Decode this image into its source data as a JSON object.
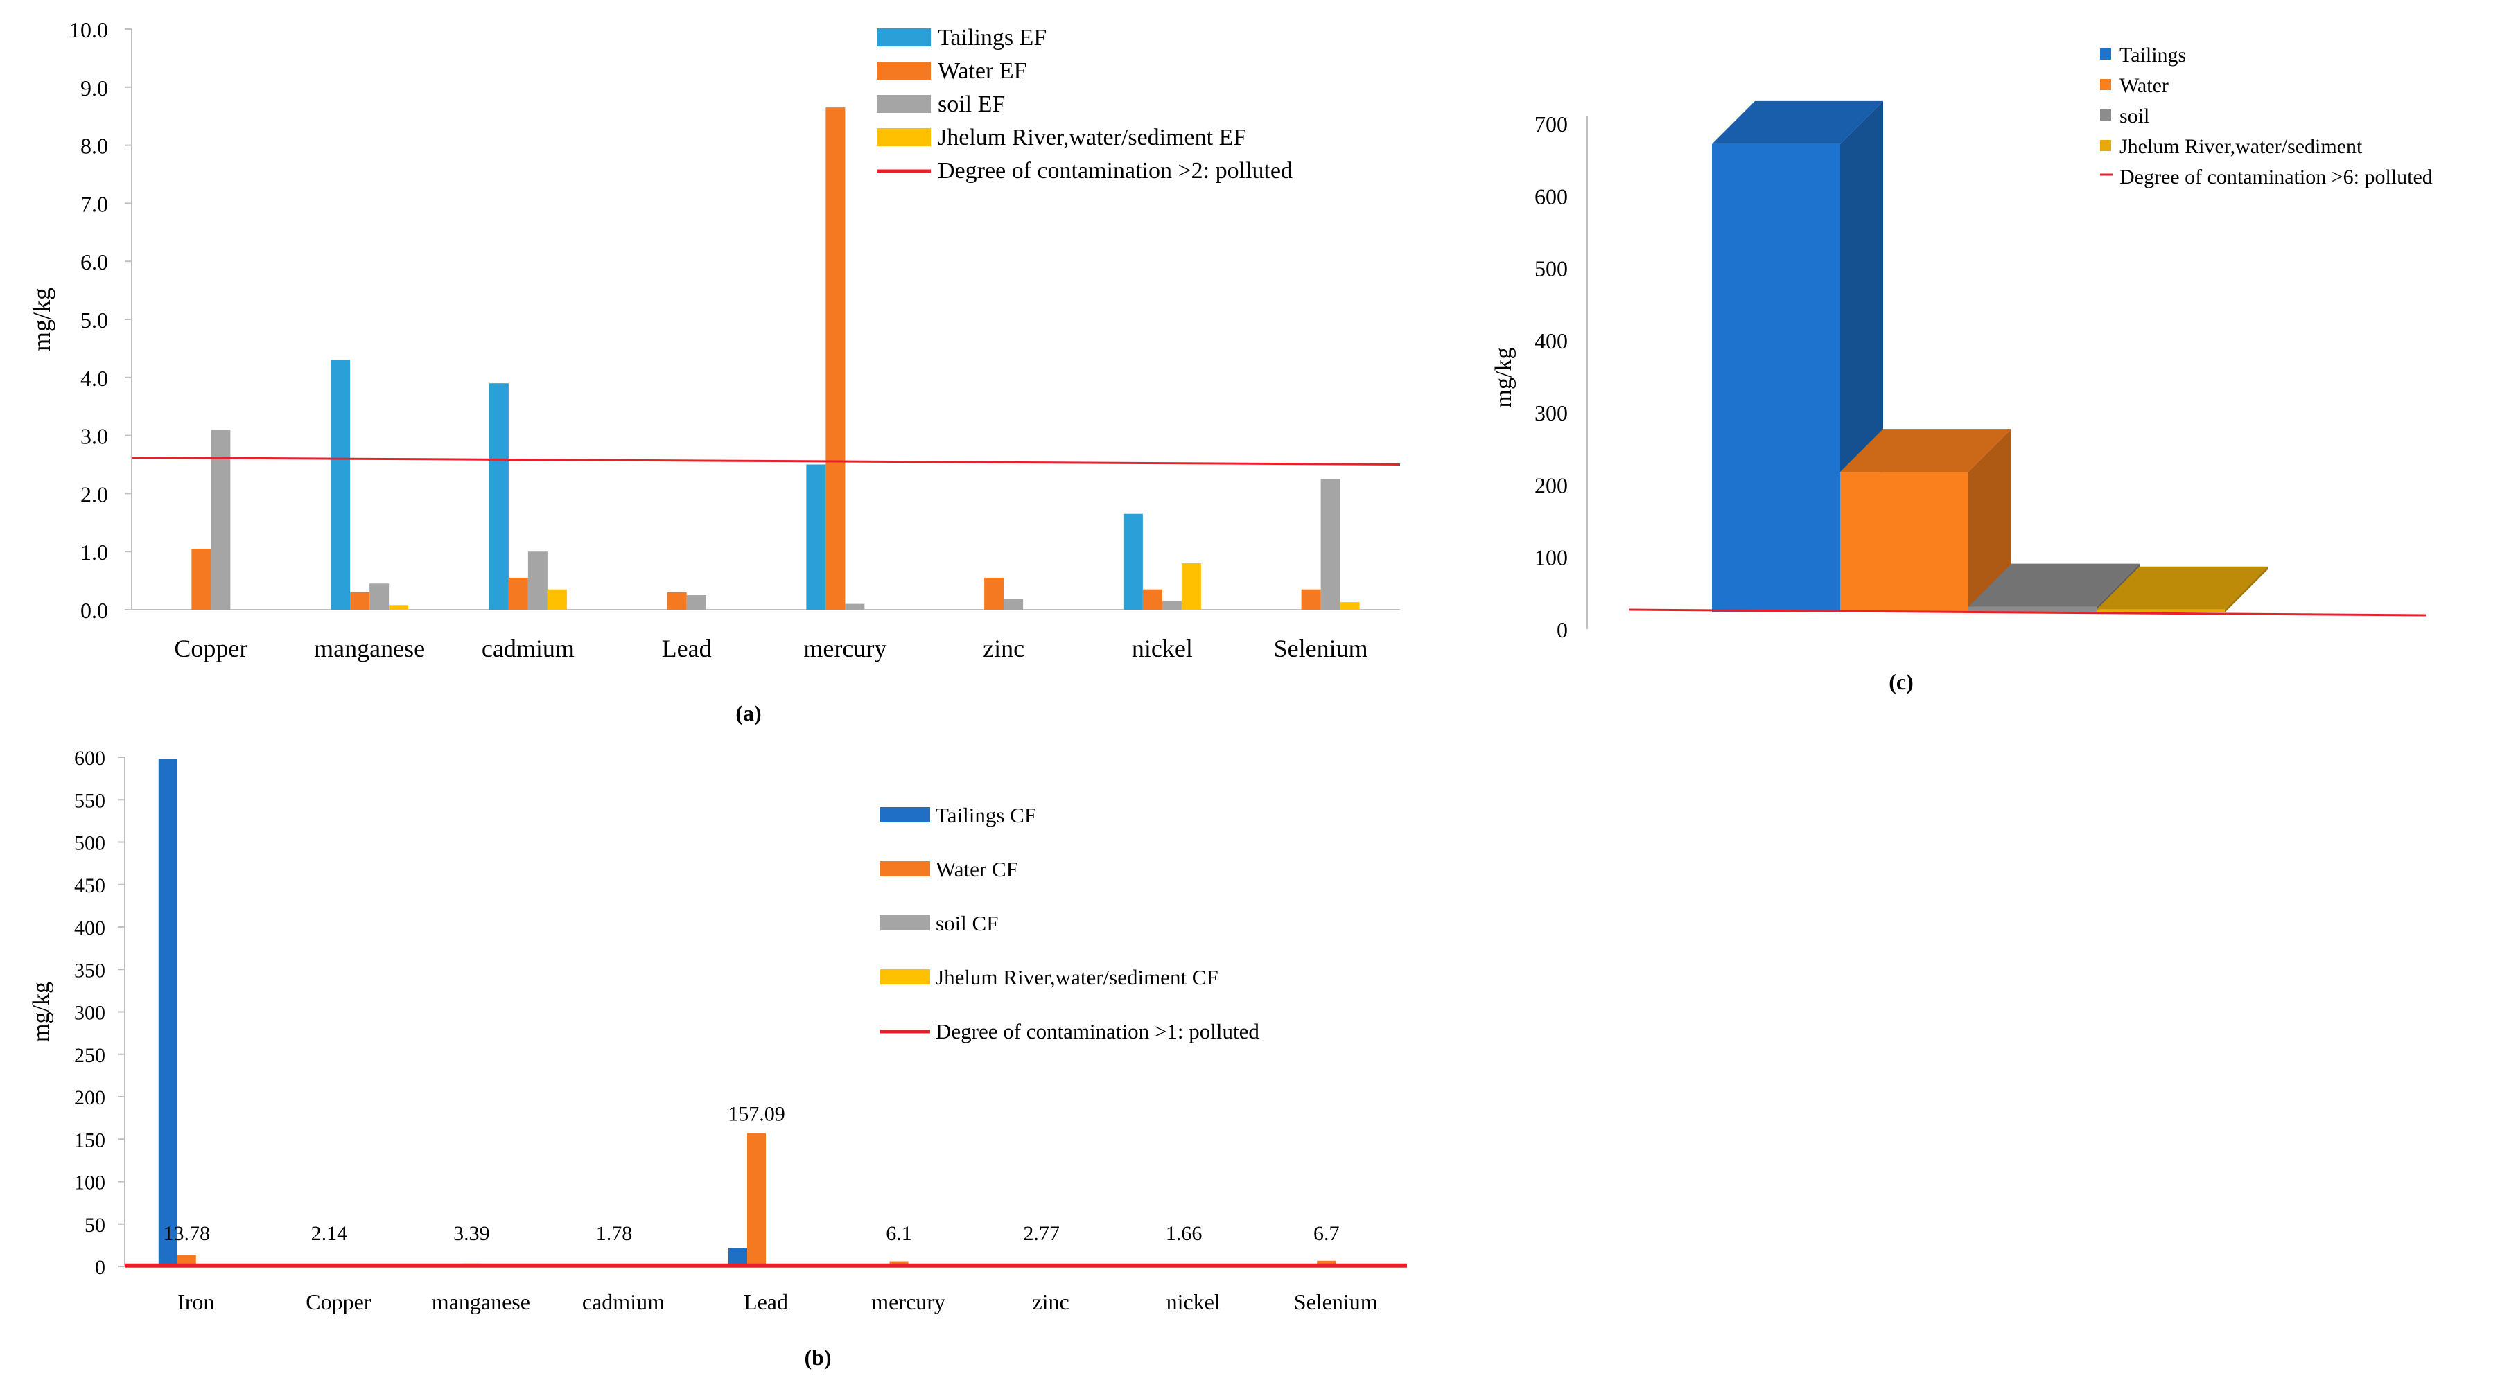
{
  "colors": {
    "a_tailings": "#2B9FD8",
    "a_water": "#F47920",
    "a_soil": "#A5A5A5",
    "a_river": "#FFC000",
    "b_tailings": "#1F6FC6",
    "b_water": "#F47920",
    "b_soil": "#A5A5A5",
    "b_river": "#FFC000",
    "c_tailings": "#1E73CF",
    "c_water": "#F9801D",
    "c_soil": "#8C8C8C",
    "c_river": "#E8A90A",
    "threshold": "#E8202A",
    "axis": "#BFBFBF"
  },
  "chart_data": [
    {
      "id": "a",
      "panel_label": "(a)",
      "type": "bar",
      "ylabel": "mg/kg",
      "ylim": [
        0,
        10
      ],
      "yticks": [
        "0.0",
        "1.0",
        "2.0",
        "3.0",
        "4.0",
        "5.0",
        "6.0",
        "7.0",
        "8.0",
        "9.0",
        "10.0"
      ],
      "categories": [
        "Copper",
        "manganese",
        "cadmium",
        "Lead",
        "mercury",
        "zinc",
        "nickel",
        "Selenium"
      ],
      "series": [
        {
          "name": "Tailings EF",
          "color_key": "a_tailings",
          "values": [
            0,
            4.3,
            3.9,
            0,
            2.5,
            0,
            1.65,
            0
          ]
        },
        {
          "name": "Water EF",
          "color_key": "a_water",
          "values": [
            1.05,
            0.3,
            0.55,
            0.3,
            8.65,
            0.55,
            0.35,
            0.35
          ]
        },
        {
          "name": "soil  EF",
          "color_key": "a_soil",
          "values": [
            3.1,
            0.45,
            1.0,
            0.25,
            0.1,
            0.18,
            0.15,
            2.25
          ]
        },
        {
          "name": "Jhelum River,water/sediment EF",
          "color_key": "a_river",
          "values": [
            0,
            0.08,
            0.35,
            0,
            0,
            0,
            0.8,
            0.13
          ]
        }
      ],
      "threshold": {
        "label": "Degree of contamination >2:  polluted",
        "y_start": 2.62,
        "y_end": 2.5
      },
      "legend_position": "top-right"
    },
    {
      "id": "b",
      "panel_label": "(b)",
      "type": "bar",
      "ylabel": "mg/kg",
      "ylim": [
        0,
        600
      ],
      "yticks": [
        "0",
        "50",
        "100",
        "150",
        "200",
        "250",
        "300",
        "350",
        "400",
        "450",
        "500",
        "550",
        "600"
      ],
      "categories": [
        "Iron",
        "Copper",
        "manganese",
        "cadmium",
        "Lead",
        "mercury",
        "zinc",
        "nickel",
        "Selenium"
      ],
      "series": [
        {
          "name": "Tailings CF",
          "color_key": "b_tailings",
          "values": [
            598,
            0,
            0,
            0,
            22,
            0,
            0,
            0,
            0
          ]
        },
        {
          "name": "Water CF",
          "color_key": "b_water",
          "values": [
            13.78,
            2.14,
            3.39,
            1.78,
            157.09,
            6.1,
            2.77,
            1.66,
            6.7
          ]
        },
        {
          "name": "soil  CF",
          "color_key": "b_soil",
          "values": [
            0,
            0,
            0,
            0,
            0,
            0,
            0,
            0,
            0
          ]
        },
        {
          "name": "Jhelum River,water/sediment CF",
          "color_key": "b_river",
          "values": [
            0,
            0,
            0,
            0,
            0,
            0,
            0,
            0,
            0
          ]
        }
      ],
      "data_labels": [
        "13.78",
        "2.14",
        "3.39",
        "1.78",
        "157.09",
        "6.1",
        "2.77",
        "1.66",
        "6.7"
      ],
      "threshold": {
        "label": "Degree of contamination >1:  polluted",
        "y_start": 1,
        "y_end": 1
      },
      "legend_position": "right"
    },
    {
      "id": "c",
      "panel_label": "(c)",
      "type": "bar",
      "ylabel": "mg/kg",
      "ylim": [
        0,
        700
      ],
      "yticks": [
        "0",
        "100",
        "200",
        "300",
        "400",
        "500",
        "600",
        "700"
      ],
      "series": [
        {
          "name": "Tailings",
          "color_key": "c_tailings",
          "value": 643
        },
        {
          "name": "Water",
          "color_key": "c_water",
          "value": 193
        },
        {
          "name": "soil",
          "color_key": "c_soil",
          "value": 8
        },
        {
          "name": "Jhelum River,water/sediment",
          "color_key": "c_river",
          "value": 4
        }
      ],
      "threshold": {
        "label": "Degree of contamination >6:  polluted",
        "y_start": 6,
        "y_end": 6
      },
      "legend_position": "top-right"
    }
  ]
}
